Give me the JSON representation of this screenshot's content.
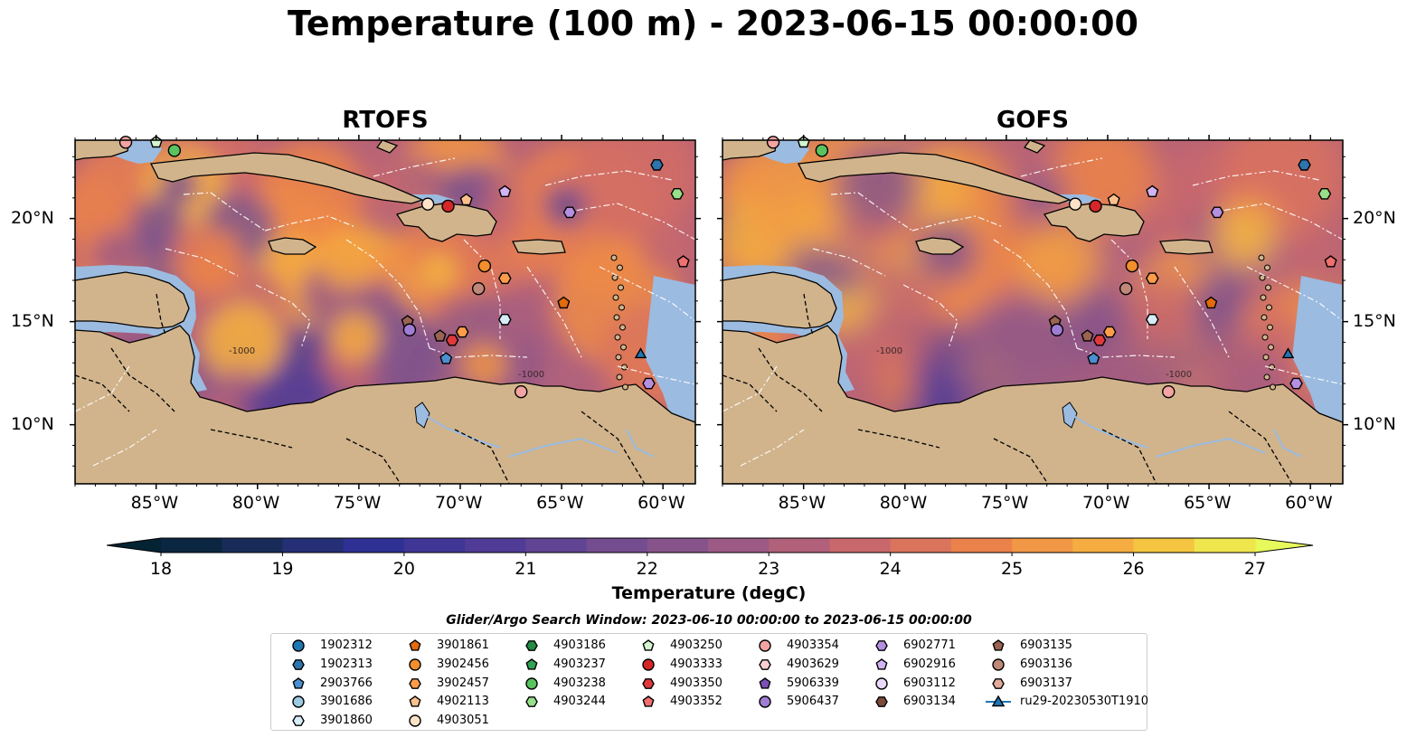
{
  "title": "Temperature (100 m) - 2023-06-15 00:00:00",
  "panels": [
    {
      "title": "RTOFS"
    },
    {
      "title": "GOFS"
    }
  ],
  "axes": {
    "x_ticks": [
      "85°W",
      "80°W",
      "75°W",
      "70°W",
      "65°W",
      "60°W"
    ],
    "y_ticks": [
      "20°N",
      "15°N",
      "10°N"
    ]
  },
  "colorbar": {
    "label": "Temperature (degC)",
    "ticks": [
      "18",
      "19",
      "20",
      "21",
      "22",
      "23",
      "24",
      "25",
      "26",
      "27"
    ],
    "min": 18,
    "max": 27,
    "step": 0.5
  },
  "legend": {
    "title": "Glider/Argo Search Window: 2023-06-10 00:00:00 to 2023-06-15 00:00:00",
    "columns": [
      [
        {
          "label": "1902312",
          "marker": "circle",
          "color": "#1f77b4"
        },
        {
          "label": "1902313",
          "marker": "hexagon",
          "color": "#2e74ad"
        },
        {
          "label": "2903766",
          "marker": "pentagon",
          "color": "#4a8fd0"
        },
        {
          "label": "3901686",
          "marker": "circle",
          "color": "#9ecae1"
        },
        {
          "label": "3901860",
          "marker": "hexagon",
          "color": "#d6ecf7"
        }
      ],
      [
        {
          "label": "3901861",
          "marker": "pentagon",
          "color": "#e36b0b"
        },
        {
          "label": "3902456",
          "marker": "circle",
          "color": "#f28e2b"
        },
        {
          "label": "3902457",
          "marker": "hexagon",
          "color": "#fd9d4a"
        },
        {
          "label": "4902113",
          "marker": "pentagon",
          "color": "#fdc08c"
        },
        {
          "label": "4903051",
          "marker": "circle",
          "color": "#fde2c8"
        }
      ],
      [
        {
          "label": "4903186",
          "marker": "hexagon",
          "color": "#238b45"
        },
        {
          "label": "4903237",
          "marker": "pentagon",
          "color": "#31a354"
        },
        {
          "label": "4903238",
          "marker": "circle",
          "color": "#59c35f"
        },
        {
          "label": "4903244",
          "marker": "hexagon",
          "color": "#98df8a"
        }
      ],
      [
        {
          "label": "4903250",
          "marker": "pentagon",
          "color": "#d4f5cf"
        },
        {
          "label": "4903333",
          "marker": "circle",
          "color": "#d62728"
        },
        {
          "label": "4903350",
          "marker": "hexagon",
          "color": "#e0393b"
        },
        {
          "label": "4903352",
          "marker": "pentagon",
          "color": "#f07070"
        }
      ],
      [
        {
          "label": "4903354",
          "marker": "circle",
          "color": "#f4a3a3"
        },
        {
          "label": "4903629",
          "marker": "hexagon",
          "color": "#fbd0d0"
        },
        {
          "label": "5906339",
          "marker": "pentagon",
          "color": "#7b4fb5"
        },
        {
          "label": "5906437",
          "marker": "circle",
          "color": "#a07dd4"
        }
      ],
      [
        {
          "label": "6902771",
          "marker": "hexagon",
          "color": "#b58fe0"
        },
        {
          "label": "6902916",
          "marker": "pentagon",
          "color": "#d2b4f2"
        },
        {
          "label": "6903112",
          "marker": "circle",
          "color": "#ead9fb"
        },
        {
          "label": "6903134",
          "marker": "hexagon",
          "color": "#7b4a3c"
        }
      ],
      [
        {
          "label": "6903135",
          "marker": "pentagon",
          "color": "#9a6352"
        },
        {
          "label": "6903136",
          "marker": "circle",
          "color": "#c08878"
        },
        {
          "label": "6903137",
          "marker": "hexagon",
          "color": "#e2ab98"
        },
        {
          "label": "ru29-20230530T1910",
          "marker": "triangle-line",
          "color": "#1f77b4"
        }
      ]
    ]
  },
  "map_labels": {
    "contour": "-1000"
  }
}
